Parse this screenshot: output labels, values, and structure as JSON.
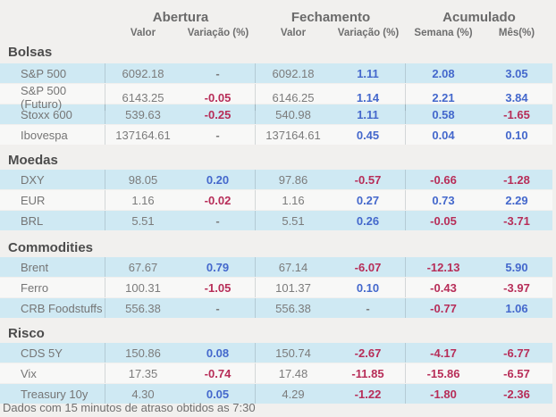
{
  "header": {
    "groups": [
      {
        "label": "Abertura"
      },
      {
        "label": "Fechamento"
      },
      {
        "label": "Acumulado"
      }
    ],
    "subcolumns": [
      "Valor",
      "Variação (%)",
      "Valor",
      "Variação (%)",
      "Semana (%)",
      "Mês(%)"
    ]
  },
  "table": {
    "sections": [
      {
        "title": "Bolsas",
        "rows": [
          {
            "label": "S&P 500",
            "cells": [
              "6092.18",
              "-",
              "6092.18",
              "1.11",
              "2.08",
              "3.05"
            ]
          },
          {
            "label": "S&P 500 (Futuro)",
            "cells": [
              "6143.25",
              "-0.05",
              "6146.25",
              "1.14",
              "2.21",
              "3.84"
            ]
          },
          {
            "label": "Stoxx 600",
            "cells": [
              "539.63",
              "-0.25",
              "540.98",
              "1.11",
              "0.58",
              "-1.65"
            ]
          },
          {
            "label": "Ibovespa",
            "cells": [
              "137164.61",
              "-",
              "137164.61",
              "0.45",
              "0.04",
              "0.10"
            ]
          }
        ]
      },
      {
        "title": "Moedas",
        "rows": [
          {
            "label": "DXY",
            "cells": [
              "98.05",
              "0.20",
              "97.86",
              "-0.57",
              "-0.66",
              "-1.28"
            ]
          },
          {
            "label": "EUR",
            "cells": [
              "1.16",
              "-0.02",
              "1.16",
              "0.27",
              "0.73",
              "2.29"
            ]
          },
          {
            "label": "BRL",
            "cells": [
              "5.51",
              "-",
              "5.51",
              "0.26",
              "-0.05",
              "-3.71"
            ]
          }
        ]
      },
      {
        "title": "Commodities",
        "rows": [
          {
            "label": "Brent",
            "cells": [
              "67.67",
              "0.79",
              "67.14",
              "-6.07",
              "-12.13",
              "5.90"
            ]
          },
          {
            "label": "Ferro",
            "cells": [
              "100.31",
              "-1.05",
              "101.37",
              "0.10",
              "-0.43",
              "-3.97"
            ]
          },
          {
            "label": "CRB Foodstuffs",
            "cells": [
              "556.38",
              "-",
              "556.38",
              "-",
              "-0.77",
              "1.06"
            ]
          }
        ]
      },
      {
        "title": "Risco",
        "rows": [
          {
            "label": "CDS 5Y",
            "cells": [
              "150.86",
              "0.08",
              "150.74",
              "-2.67",
              "-4.17",
              "-6.77"
            ]
          },
          {
            "label": "Vix",
            "cells": [
              "17.35",
              "-0.74",
              "17.48",
              "-11.85",
              "-15.86",
              "-6.57"
            ]
          },
          {
            "label": "Treasury 10y",
            "cells": [
              "4.30",
              "0.05",
              "4.29",
              "-1.22",
              "-1.80",
              "-2.36"
            ]
          }
        ]
      }
    ]
  },
  "footer": {
    "note": "Dados com 15 minutos de atraso obtidos as 7:30"
  },
  "colors": {
    "positive": "#4468cc",
    "negative": "#b72d58",
    "row_alt": "#cfe9f3",
    "row_base": "#f8f8f7",
    "background": "#f1f0ee"
  }
}
